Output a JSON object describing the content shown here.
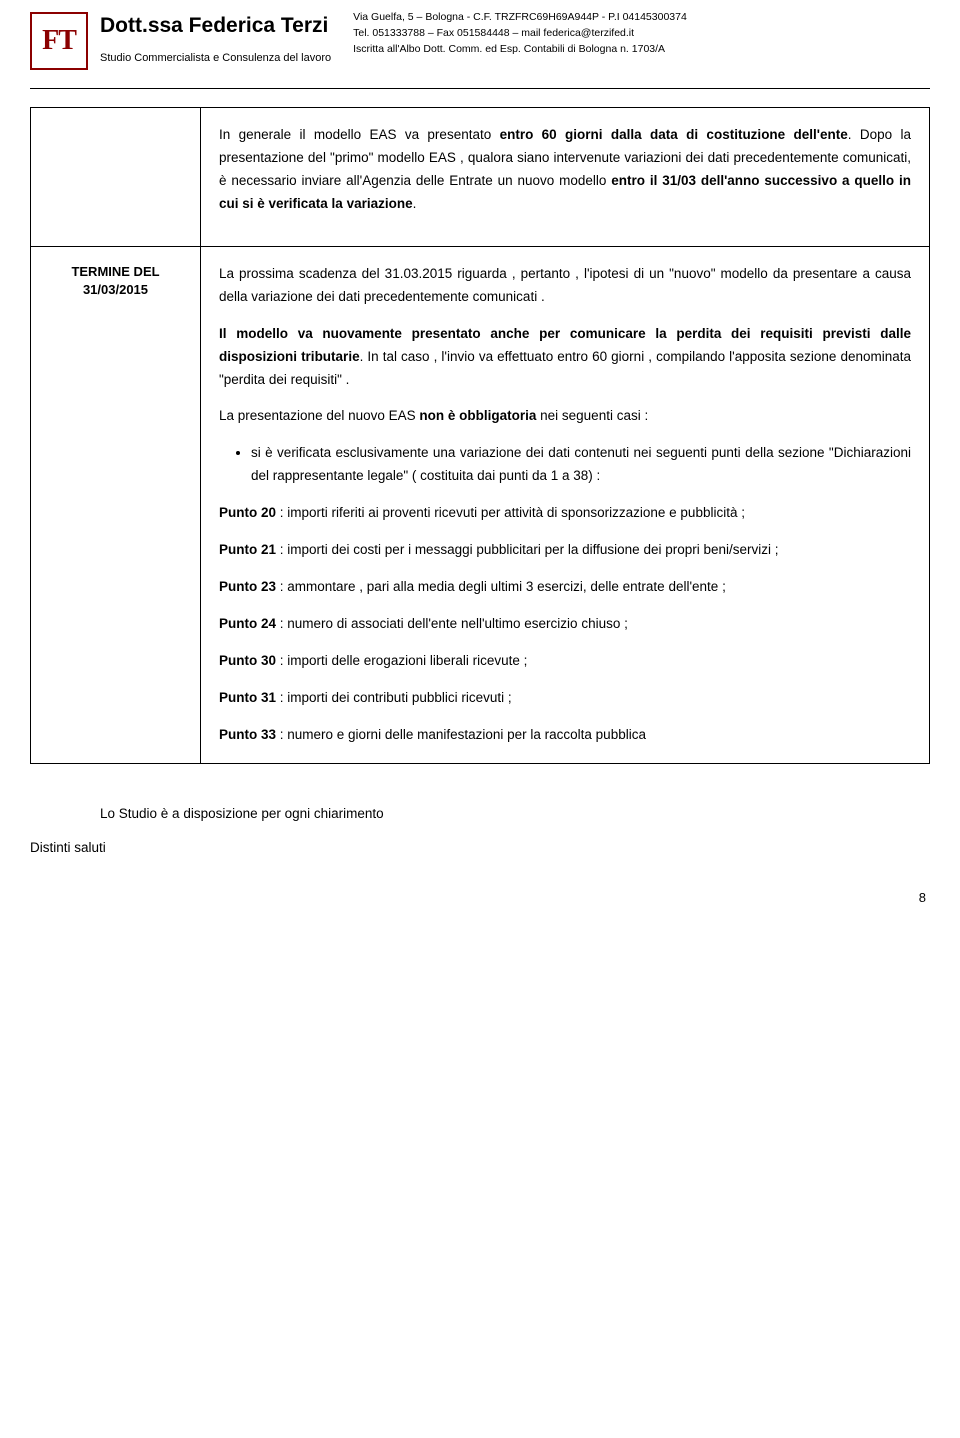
{
  "header": {
    "logo": "FT",
    "name": "Dott.ssa Federica Terzi",
    "subtitle": "Studio Commercialista e Consulenza del lavoro",
    "address_line1": "Via Guelfa, 5 – Bologna - C.F. TRZFRC69H69A944P - P.I 04145300374",
    "address_line2": "Tel. 051333788 – Fax 051584448 – mail federica@terzifed.it",
    "address_line3": "Iscritta all'Albo Dott. Comm. ed Esp. Contabili di Bologna n. 1703/A"
  },
  "row1": {
    "p1_a": "In generale il modello EAS va presentato ",
    "p1_b": "entro 60 giorni dalla data di costituzione dell'ente",
    "p1_c": ". Dopo la presentazione del \"primo\" modello EAS , qualora siano intervenute variazioni dei dati precedentemente comunicati, è necessario inviare all'Agenzia delle Entrate un nuovo modello ",
    "p1_d": "entro il 31/03 dell'anno successivo a quello in cui si è verificata la variazione",
    "p1_e": "."
  },
  "row2": {
    "left1": "TERMINE DEL",
    "left2": "31/03/2015",
    "p1": "La prossima scadenza del 31.03.2015 riguarda , pertanto , l'ipotesi di un \"nuovo\" modello da presentare a causa della variazione dei dati precedentemente comunicati .",
    "p2_a": "Il modello va nuovamente presentato anche per comunicare la perdita dei requisiti previsti dalle disposizioni tributarie",
    "p2_b": ". In tal caso , l'invio va effettuato entro 60 giorni , compilando l'apposita sezione denominata \"perdita dei requisiti\" .",
    "p3_a": "La presentazione del nuovo EAS ",
    "p3_b": "non è obbligatoria",
    "p3_c": " nei seguenti casi :",
    "bullet1": "si è verificata esclusivamente una variazione dei dati contenuti nei seguenti punti della sezione \"Dichiarazioni del rappresentante legale\" ( costituita dai punti da 1 a 38) :",
    "pt20_a": "Punto 20",
    "pt20_b": " : importi riferiti ai proventi ricevuti per attività di sponsorizzazione e pubblicità ;",
    "pt21_a": "Punto 21",
    "pt21_b": " : importi dei costi per i messaggi pubblicitari per la diffusione dei propri beni/servizi ;",
    "pt23_a": "Punto 23",
    "pt23_b": " : ammontare , pari alla media degli ultimi 3 esercizi, delle entrate dell'ente ;",
    "pt24_a": "Punto 24",
    "pt24_b": " : numero di associati dell'ente nell'ultimo esercizio chiuso ;",
    "pt30_a": "Punto 30",
    "pt30_b": " : importi delle erogazioni liberali ricevute ;",
    "pt31_a": "Punto 31",
    "pt31_b": " : importi dei contributi pubblici ricevuti ;",
    "pt33_a": "Punto 33",
    "pt33_b": " : numero e giorni delle manifestazioni per la raccolta pubblica"
  },
  "footer": {
    "closing": "Lo  Studio è a disposizione per ogni chiarimento",
    "saluti": "Distinti saluti",
    "page": "8"
  }
}
